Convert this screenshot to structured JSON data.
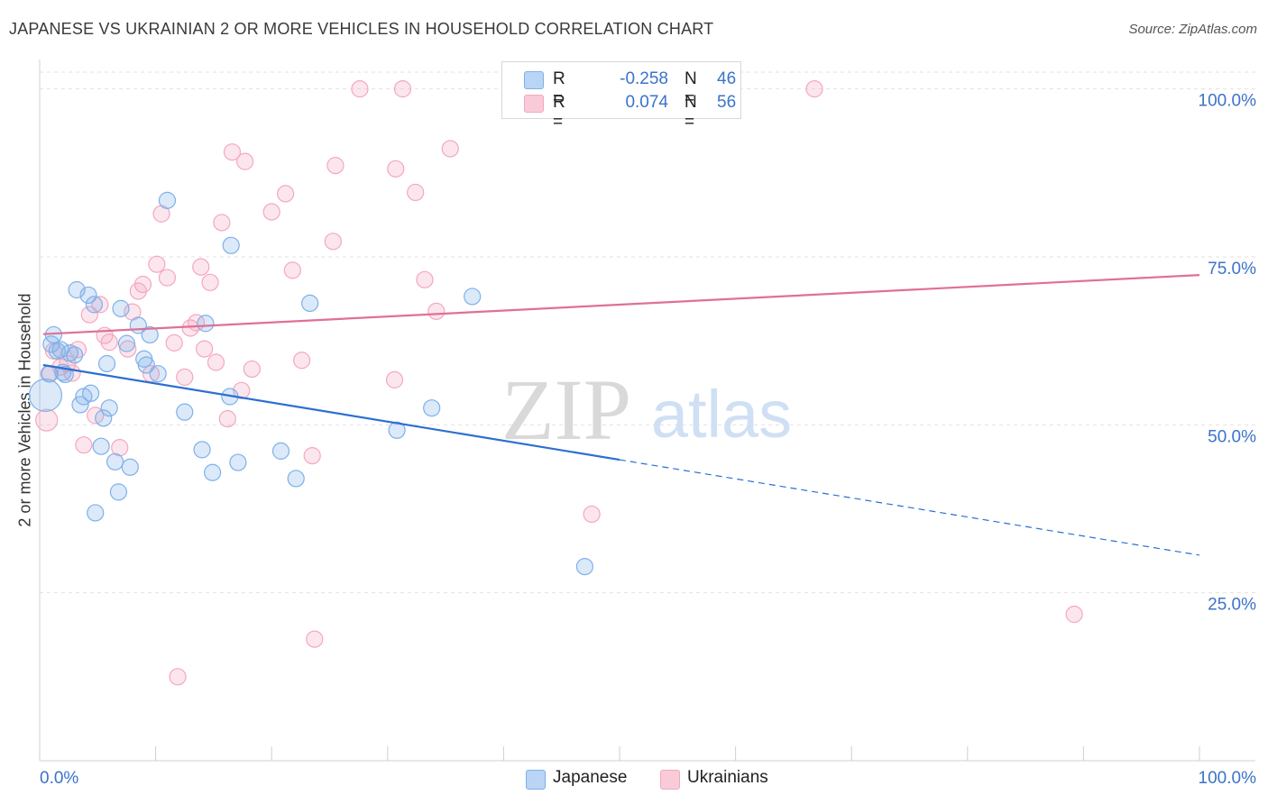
{
  "title": "JAPANESE VS UKRAINIAN 2 OR MORE VEHICLES IN HOUSEHOLD CORRELATION CHART",
  "source": "Source: ZipAtlas.com",
  "watermark": {
    "zip": "ZIP",
    "atlas": "atlas"
  },
  "legend": {
    "rows": [
      {
        "r_label": "R =",
        "r_value": "-0.258",
        "n_label": "N =",
        "n_value": "46",
        "color": "#a9c9f2"
      },
      {
        "r_label": "R =",
        "r_value": "0.074",
        "n_label": "N =",
        "n_value": "56",
        "color": "#f5b8ca"
      }
    ]
  },
  "bottom_legend": {
    "japanese": "Japanese",
    "ukrainians": "Ukrainians"
  },
  "chart_data": {
    "type": "scatter",
    "title": "JAPANESE VS UKRAINIAN 2 OR MORE VEHICLES IN HOUSEHOLD CORRELATION CHART",
    "xlabel": "",
    "ylabel": "2 or more Vehicles in Household",
    "xlim": [
      0,
      100
    ],
    "ylim": [
      0,
      102.5
    ],
    "x_tick_labels": [
      "0.0%",
      "100.0%"
    ],
    "y_ticks": [
      25,
      50,
      75,
      100
    ],
    "y_tick_labels": [
      "25.0%",
      "50.0%",
      "75.0%",
      "100.0%"
    ],
    "grid": true,
    "legend_position": "top-center",
    "series": [
      {
        "name": "Japanese",
        "color": "#7eb0ea",
        "line_color": "#2b6fd1",
        "trend": {
          "x0": 0.3,
          "y0": 58.9,
          "x1": 50.0,
          "y1": 44.8,
          "dash_to_x": 100,
          "dash_to_y": 30.6
        },
        "points": [
          [
            0.5,
            54.4,
            18
          ],
          [
            0.8,
            57.6,
            9
          ],
          [
            1.0,
            62.0,
            9
          ],
          [
            1.2,
            63.4,
            9
          ],
          [
            1.5,
            61.0,
            9
          ],
          [
            1.8,
            61.2,
            9
          ],
          [
            2.0,
            57.8,
            9
          ],
          [
            2.2,
            57.5,
            9
          ],
          [
            2.6,
            60.7,
            9
          ],
          [
            3.0,
            60.4,
            9
          ],
          [
            3.2,
            70.1,
            9
          ],
          [
            3.5,
            53.0,
            9
          ],
          [
            3.8,
            54.2,
            9
          ],
          [
            4.2,
            69.3,
            9
          ],
          [
            4.4,
            54.7,
            9
          ],
          [
            4.7,
            67.9,
            9
          ],
          [
            5.3,
            46.8,
            9
          ],
          [
            5.5,
            51.0,
            9
          ],
          [
            5.8,
            59.1,
            9
          ],
          [
            6.0,
            52.5,
            9
          ],
          [
            6.5,
            44.5,
            9
          ],
          [
            4.8,
            36.9,
            9
          ],
          [
            6.8,
            40.0,
            9
          ],
          [
            7.0,
            67.3,
            9
          ],
          [
            7.5,
            62.1,
            9
          ],
          [
            7.8,
            43.7,
            9
          ],
          [
            8.5,
            64.8,
            9
          ],
          [
            9.0,
            59.8,
            9
          ],
          [
            9.2,
            58.9,
            9
          ],
          [
            9.5,
            63.4,
            9
          ],
          [
            10.2,
            57.6,
            9
          ],
          [
            11.0,
            83.4,
            9
          ],
          [
            12.5,
            51.9,
            9
          ],
          [
            14.0,
            46.3,
            9
          ],
          [
            14.3,
            65.1,
            9
          ],
          [
            14.9,
            42.9,
            9
          ],
          [
            16.5,
            76.7,
            9
          ],
          [
            16.4,
            54.2,
            9
          ],
          [
            17.1,
            44.4,
            9
          ],
          [
            20.8,
            46.1,
            9
          ],
          [
            22.1,
            42.0,
            9
          ],
          [
            23.3,
            68.1,
            9
          ],
          [
            30.8,
            49.2,
            9
          ],
          [
            33.8,
            52.5,
            9
          ],
          [
            37.3,
            69.1,
            9
          ],
          [
            47.0,
            28.9,
            9
          ]
        ]
      },
      {
        "name": "Ukrainians",
        "color": "#f4a7bd",
        "line_color": "#e07094",
        "trend": {
          "x0": 0.3,
          "y0": 63.5,
          "x1": 100,
          "y1": 72.3
        },
        "points": [
          [
            0.6,
            50.7,
            12
          ],
          [
            0.9,
            57.6,
            9
          ],
          [
            1.2,
            61.0,
            9
          ],
          [
            1.8,
            58.6,
            9
          ],
          [
            2.4,
            59.1,
            9
          ],
          [
            2.8,
            57.7,
            9
          ],
          [
            3.3,
            61.2,
            9
          ],
          [
            3.8,
            47.0,
            9
          ],
          [
            4.3,
            66.4,
            9
          ],
          [
            4.8,
            51.4,
            9
          ],
          [
            5.2,
            67.9,
            9
          ],
          [
            5.6,
            63.3,
            9
          ],
          [
            6.0,
            62.3,
            9
          ],
          [
            6.9,
            46.6,
            9
          ],
          [
            7.6,
            61.3,
            9
          ],
          [
            8.0,
            66.8,
            9
          ],
          [
            8.5,
            69.9,
            9
          ],
          [
            8.9,
            70.9,
            9
          ],
          [
            9.6,
            57.6,
            9
          ],
          [
            10.1,
            73.9,
            9
          ],
          [
            10.5,
            81.4,
            9
          ],
          [
            11.0,
            71.9,
            9
          ],
          [
            11.6,
            62.2,
            9
          ],
          [
            11.9,
            12.5,
            9
          ],
          [
            12.5,
            57.1,
            9
          ],
          [
            13.0,
            64.4,
            9
          ],
          [
            13.5,
            65.2,
            9
          ],
          [
            13.9,
            73.5,
            9
          ],
          [
            14.2,
            61.3,
            9
          ],
          [
            14.7,
            71.2,
            9
          ],
          [
            15.2,
            59.3,
            9
          ],
          [
            15.7,
            80.1,
            9
          ],
          [
            16.2,
            50.9,
            9
          ],
          [
            16.6,
            90.6,
            9
          ],
          [
            17.4,
            55.1,
            9
          ],
          [
            17.7,
            89.2,
            9
          ],
          [
            18.3,
            58.3,
            9
          ],
          [
            20.0,
            81.7,
            9
          ],
          [
            21.2,
            84.4,
            9
          ],
          [
            21.8,
            73.0,
            9
          ],
          [
            22.6,
            59.6,
            9
          ],
          [
            23.5,
            45.4,
            9
          ],
          [
            23.7,
            18.1,
            9
          ],
          [
            25.3,
            77.3,
            9
          ],
          [
            25.5,
            88.6,
            9
          ],
          [
            27.6,
            100.0,
            9
          ],
          [
            30.6,
            56.7,
            9
          ],
          [
            30.7,
            88.1,
            9
          ],
          [
            31.3,
            100.0,
            9
          ],
          [
            32.4,
            84.6,
            9
          ],
          [
            33.2,
            71.6,
            9
          ],
          [
            34.2,
            66.9,
            9
          ],
          [
            35.4,
            91.1,
            9
          ],
          [
            47.6,
            36.7,
            9
          ],
          [
            66.8,
            100.0,
            9
          ],
          [
            89.2,
            21.8,
            9
          ]
        ]
      }
    ]
  }
}
